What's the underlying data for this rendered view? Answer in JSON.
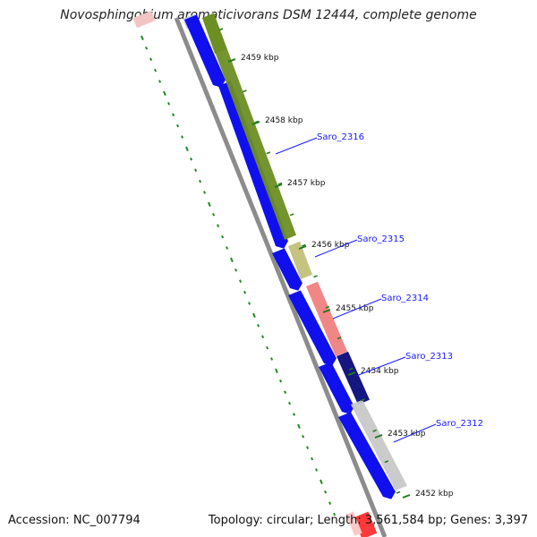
{
  "title": "Novosphingobium aromaticivorans DSM 12444, complete genome",
  "footer": {
    "accession": "Accession: NC_007794",
    "summary": "Topology: circular; Length: 3,561,584 bp; Genes: 3,397"
  },
  "colors": {
    "backbone": "#8c8c8c",
    "gene_forward": "#1010ee",
    "tick": "#1f7a1f",
    "dots": "#1f8a1f",
    "label": "#1a1aff"
  },
  "ticks": [
    {
      "label": "2459 kbp"
    },
    {
      "label": "2458 kbp"
    },
    {
      "label": "2457 kbp"
    },
    {
      "label": "2456 kbp"
    },
    {
      "label": "2455 kbp"
    },
    {
      "label": "2454 kbp"
    },
    {
      "label": "2453 kbp"
    },
    {
      "label": "2452 kbp"
    }
  ],
  "gene_labels": [
    {
      "text": "Saro_2316"
    },
    {
      "text": "Saro_2315"
    },
    {
      "text": "Saro_2314"
    },
    {
      "text": "Saro_2313"
    },
    {
      "text": "Saro_2312"
    }
  ],
  "feature_colors": [
    "#6b8e23",
    "#c2c07a",
    "#f08080",
    "#0a0a7a",
    "#c8c8c8"
  ]
}
